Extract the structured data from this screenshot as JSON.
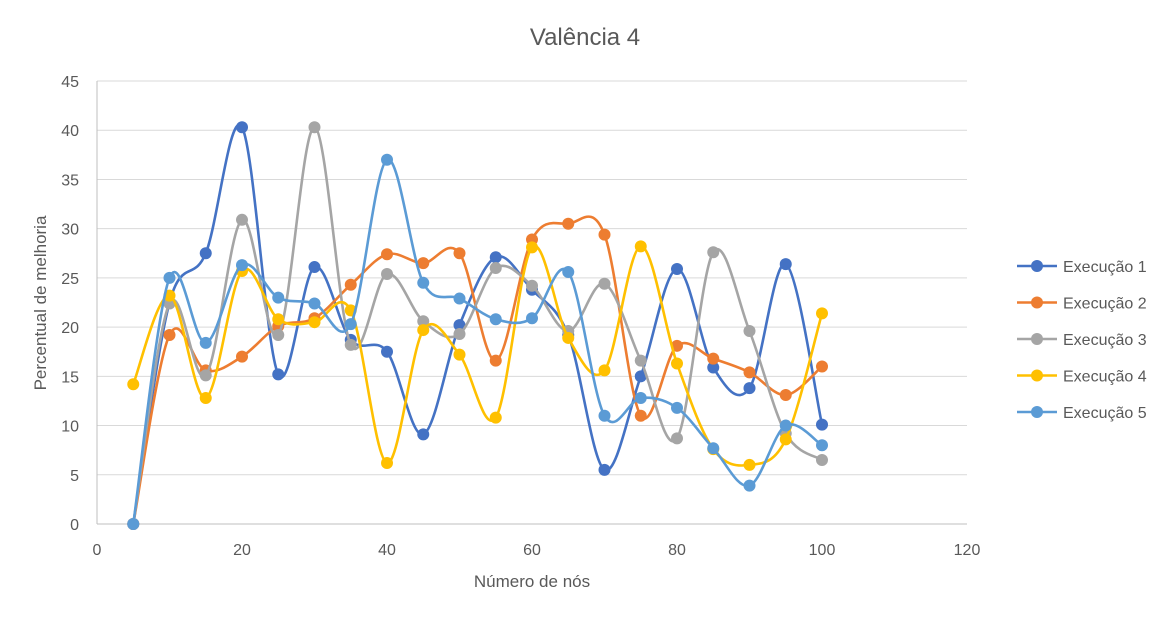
{
  "chart_data": {
    "type": "scatter",
    "title": "Valência 4",
    "xlabel": "Número de nós",
    "ylabel": "Percentual de melhoria",
    "xlim": [
      0,
      120
    ],
    "ylim": [
      0,
      45
    ],
    "xticks": [
      0,
      20,
      40,
      60,
      80,
      100,
      120
    ],
    "yticks": [
      0,
      5,
      10,
      15,
      20,
      25,
      30,
      35,
      40,
      45
    ],
    "grid": "horizontal",
    "legend_position": "right",
    "smoothed_lines": true,
    "x": [
      5,
      10,
      15,
      20,
      25,
      30,
      35,
      40,
      45,
      50,
      55,
      60,
      65,
      70,
      75,
      80,
      85,
      90,
      95,
      100
    ],
    "series": [
      {
        "name": "Execução 1",
        "color": "#4472C4",
        "values": [
          0,
          22.5,
          27.5,
          40.3,
          15.2,
          26.1,
          18.7,
          17.5,
          9.1,
          20.2,
          27.1,
          23.8,
          19.2,
          5.5,
          15.0,
          25.9,
          15.9,
          13.8,
          26.4,
          10.1
        ]
      },
      {
        "name": "Execução 2",
        "color": "#ED7D31",
        "values": [
          0,
          19.2,
          15.6,
          17.0,
          20.1,
          20.9,
          24.3,
          27.4,
          26.5,
          27.5,
          16.6,
          28.9,
          30.5,
          29.4,
          11.0,
          18.1,
          16.8,
          15.4,
          13.1,
          16.0
        ]
      },
      {
        "name": "Execução 3",
        "color": "#A5A5A5",
        "values": [
          0,
          22.4,
          15.1,
          30.9,
          19.2,
          40.3,
          18.2,
          25.4,
          20.6,
          19.3,
          26.0,
          24.2,
          19.6,
          24.4,
          16.6,
          8.7,
          27.6,
          19.6,
          9.2,
          6.5
        ]
      },
      {
        "name": "Execução 4",
        "color": "#FFC000",
        "values": [
          14.2,
          23.2,
          12.8,
          25.7,
          20.8,
          20.5,
          21.7,
          6.2,
          19.7,
          17.2,
          10.8,
          28.1,
          18.9,
          15.6,
          28.2,
          16.3,
          7.6,
          6.0,
          8.6,
          21.4
        ]
      },
      {
        "name": "Execução 5",
        "color": "#5B9BD5",
        "values": [
          0,
          25.0,
          18.4,
          26.3,
          23.0,
          22.4,
          20.3,
          37.0,
          24.5,
          22.9,
          20.8,
          20.9,
          25.6,
          11.0,
          12.8,
          11.8,
          7.7,
          3.9,
          10.0,
          8.0
        ]
      }
    ]
  }
}
